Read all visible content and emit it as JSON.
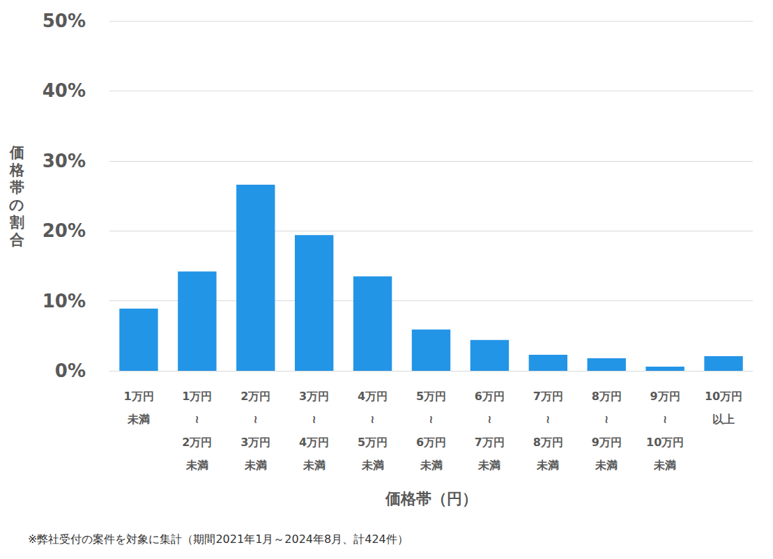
{
  "chart_data": {
    "type": "bar",
    "x_label": "価格帯（円）",
    "y_label": "価格帯の割合",
    "annotations": [
      "※弊社受付の案件を対象に集計（期間2021年1月～2024年8月、計424件）"
    ],
    "categories": [
      "1万円\n未満",
      "1万円\n≀\n2万円\n未満",
      "2万円\n≀\n3万円\n未満",
      "3万円\n≀\n4万円\n未満",
      "4万円\n≀\n5万円\n未満",
      "5万円\n≀\n6万円\n未満",
      "6万円\n≀\n7万円\n未満",
      "7万円\n≀\n8万円\n未満",
      "8万円\n≀\n9万円\n未満",
      "9万円\n≀\n10万円\n未満",
      "10万円\n以上"
    ],
    "values": [
      8.9,
      14.2,
      26.6,
      19.4,
      13.5,
      5.9,
      4.4,
      2.3,
      1.8,
      0.6,
      2.1
    ],
    "color": "#2395e6",
    "ylim": [
      0,
      50
    ],
    "yticks": [
      {
        "value": 0,
        "label": "0%"
      },
      {
        "value": 10,
        "label": "10%"
      },
      {
        "value": 20,
        "label": "20%"
      },
      {
        "value": 30,
        "label": "30%"
      },
      {
        "value": 40,
        "label": "40%"
      },
      {
        "value": 50,
        "label": "50%"
      }
    ],
    "grid": true
  }
}
